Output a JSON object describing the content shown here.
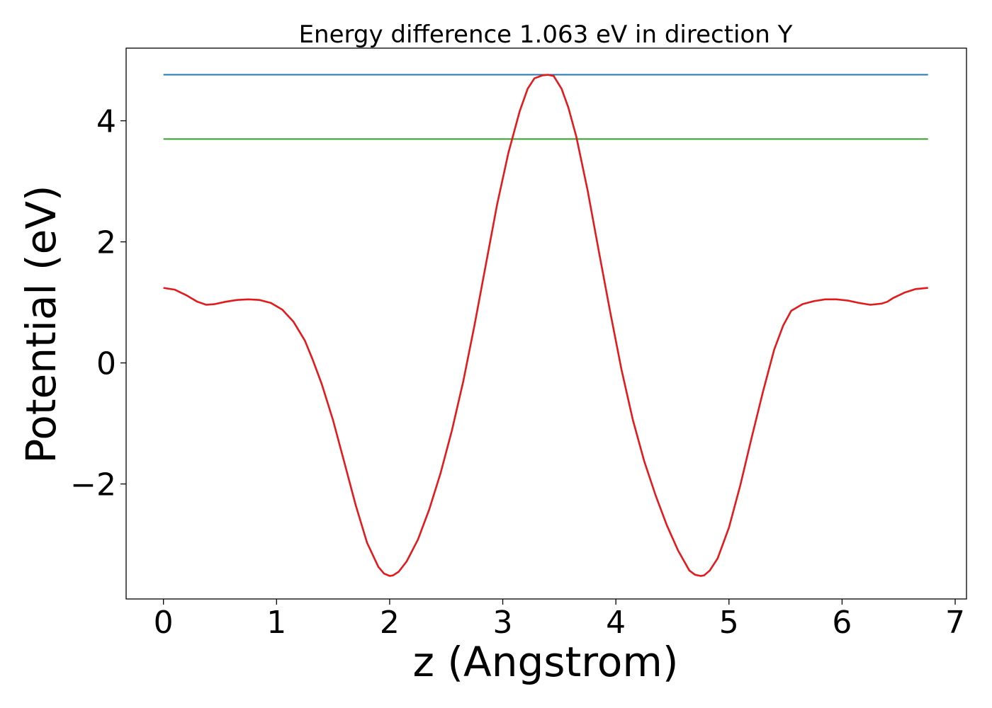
{
  "chart_data": {
    "type": "line",
    "title": "Energy difference 1.063 eV in direction Y",
    "xlabel": "z (Angstrom)",
    "ylabel": "Potential (eV)",
    "xlim": [
      -0.33,
      7.1
    ],
    "ylim": [
      -3.9,
      5.2
    ],
    "x_ticks": [
      0,
      1,
      2,
      3,
      4,
      5,
      6,
      7
    ],
    "x_tick_labels": [
      "0",
      "1",
      "2",
      "3",
      "4",
      "5",
      "6",
      "7"
    ],
    "y_ticks": [
      -2,
      0,
      2,
      4
    ],
    "y_tick_labels": [
      "−2",
      "0",
      "2",
      "4"
    ],
    "grid": false,
    "colors": {
      "potential": "#e31a1c",
      "max_line": "#1f78b4",
      "level_line": "#33a02c"
    },
    "hlines": [
      {
        "y": 4.762,
        "x": [
          0,
          6.76
        ],
        "color": "#1f78b4"
      },
      {
        "y": 3.699,
        "x": [
          0,
          6.76
        ],
        "color": "#33a02c"
      }
    ],
    "series": [
      {
        "color": "#e31a1c",
        "x": [
          0.0,
          0.1,
          0.2,
          0.3,
          0.38,
          0.45,
          0.55,
          0.65,
          0.75,
          0.85,
          0.95,
          1.05,
          1.15,
          1.25,
          1.32,
          1.4,
          1.5,
          1.6,
          1.7,
          1.8,
          1.9,
          1.95,
          2.0,
          2.03,
          2.08,
          2.15,
          2.25,
          2.35,
          2.45,
          2.55,
          2.65,
          2.75,
          2.85,
          2.95,
          3.05,
          3.15,
          3.22,
          3.28,
          3.35,
          3.4,
          3.45,
          3.52,
          3.58,
          3.65,
          3.75,
          3.85,
          3.95,
          4.05,
          4.15,
          4.25,
          4.35,
          4.45,
          4.55,
          4.65,
          4.7,
          4.75,
          4.78,
          4.83,
          4.9,
          5.0,
          5.1,
          5.2,
          5.3,
          5.4,
          5.48,
          5.55,
          5.65,
          5.75,
          5.85,
          5.95,
          6.05,
          6.15,
          6.25,
          6.35,
          6.4,
          6.45,
          6.55,
          6.65,
          6.76
        ],
        "values": [
          1.24,
          1.21,
          1.12,
          1.01,
          0.96,
          0.97,
          1.01,
          1.04,
          1.05,
          1.04,
          0.99,
          0.88,
          0.68,
          0.37,
          0.05,
          -0.35,
          -0.95,
          -1.65,
          -2.35,
          -2.97,
          -3.37,
          -3.48,
          -3.52,
          -3.51,
          -3.45,
          -3.28,
          -2.92,
          -2.42,
          -1.82,
          -1.12,
          -0.31,
          0.62,
          1.62,
          2.62,
          3.47,
          4.16,
          4.53,
          4.7,
          4.75,
          4.76,
          4.74,
          4.53,
          4.22,
          3.74,
          2.85,
          1.84,
          0.84,
          -0.11,
          -0.94,
          -1.62,
          -2.18,
          -2.68,
          -3.1,
          -3.43,
          -3.5,
          -3.52,
          -3.51,
          -3.43,
          -3.23,
          -2.72,
          -2.02,
          -1.24,
          -0.48,
          0.22,
          0.62,
          0.86,
          0.97,
          1.02,
          1.05,
          1.05,
          1.03,
          0.99,
          0.96,
          0.98,
          1.01,
          1.07,
          1.16,
          1.22,
          1.24
        ]
      }
    ]
  }
}
